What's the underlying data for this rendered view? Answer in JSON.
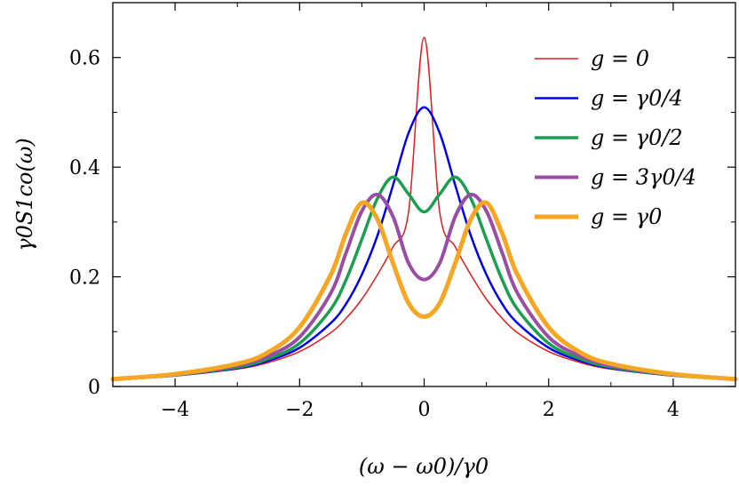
{
  "chart_data": {
    "type": "line",
    "title": "",
    "xlabel": "(ω − ω0)/γ0",
    "ylabel": "γ0S1co(ω)",
    "xlim": [
      -5,
      5
    ],
    "ylim": [
      0,
      0.7
    ],
    "x_ticks": [
      -4,
      -2,
      0,
      2,
      4
    ],
    "x_tick_labels": [
      "−4",
      "−2",
      "0",
      "2",
      "4"
    ],
    "y_ticks": [
      0,
      0.2,
      0.4,
      0.6
    ],
    "y_tick_labels": [
      "0",
      "0.2",
      "0.4",
      "0.6"
    ],
    "grid": false,
    "legend_position": "top-right",
    "x": [
      -5,
      -4,
      -3,
      -2.5,
      -2,
      -1.5,
      -1.25,
      -1,
      -0.75,
      -0.5,
      -0.25,
      0,
      0.25,
      0.5,
      0.75,
      1,
      1.25,
      1.5,
      2,
      2.5,
      3,
      4,
      5
    ],
    "series": [
      {
        "name": "g = 0",
        "color": "#e41a1c",
        "values": [
          0.0127,
          0.0194,
          0.0318,
          0.0439,
          0.0637,
          0.098,
          0.1247,
          0.1592,
          0.2037,
          0.2547,
          0.3183,
          0.6366,
          0.3183,
          0.2547,
          0.2037,
          0.1592,
          0.1247,
          0.098,
          0.0637,
          0.0439,
          0.0318,
          0.0194,
          0.0127
        ]
      },
      {
        "name": "g = γ0/4",
        "color": "#0000ee",
        "values": [
          0.0128,
          0.0199,
          0.0335,
          0.0471,
          0.0707,
          0.1156,
          0.1514,
          0.2042,
          0.2752,
          0.3669,
          0.4623,
          0.5093,
          0.4623,
          0.3669,
          0.2752,
          0.2042,
          0.1514,
          0.1156,
          0.0707,
          0.0471,
          0.0335,
          0.0199,
          0.0128
        ]
      },
      {
        "name": "g = γ0/2",
        "color": "#1a9e50",
        "values": [
          0.0131,
          0.0207,
          0.0355,
          0.0508,
          0.0787,
          0.1408,
          0.1956,
          0.2686,
          0.3431,
          0.382,
          0.3509,
          0.3183,
          0.3509,
          0.382,
          0.3431,
          0.2686,
          0.1956,
          0.1408,
          0.0787,
          0.0508,
          0.0355,
          0.0207,
          0.0131
        ]
      },
      {
        "name": "g = 3γ0/4",
        "color": "#984ea3",
        "values": [
          0.0133,
          0.0215,
          0.0382,
          0.0559,
          0.0902,
          0.17,
          0.245,
          0.32,
          0.35,
          0.31,
          0.225,
          0.195,
          0.225,
          0.31,
          0.35,
          0.32,
          0.245,
          0.17,
          0.0902,
          0.0559,
          0.0382,
          0.0215,
          0.0133
        ]
      },
      {
        "name": "g = γ0",
        "color": "#f5a623",
        "values": [
          0.0135,
          0.0226,
          0.0414,
          0.0627,
          0.1081,
          0.2035,
          0.2805,
          0.335,
          0.305,
          0.225,
          0.152,
          0.1273,
          0.152,
          0.225,
          0.305,
          0.335,
          0.2805,
          0.2035,
          0.1081,
          0.0627,
          0.0414,
          0.0226,
          0.0135
        ]
      }
    ]
  }
}
